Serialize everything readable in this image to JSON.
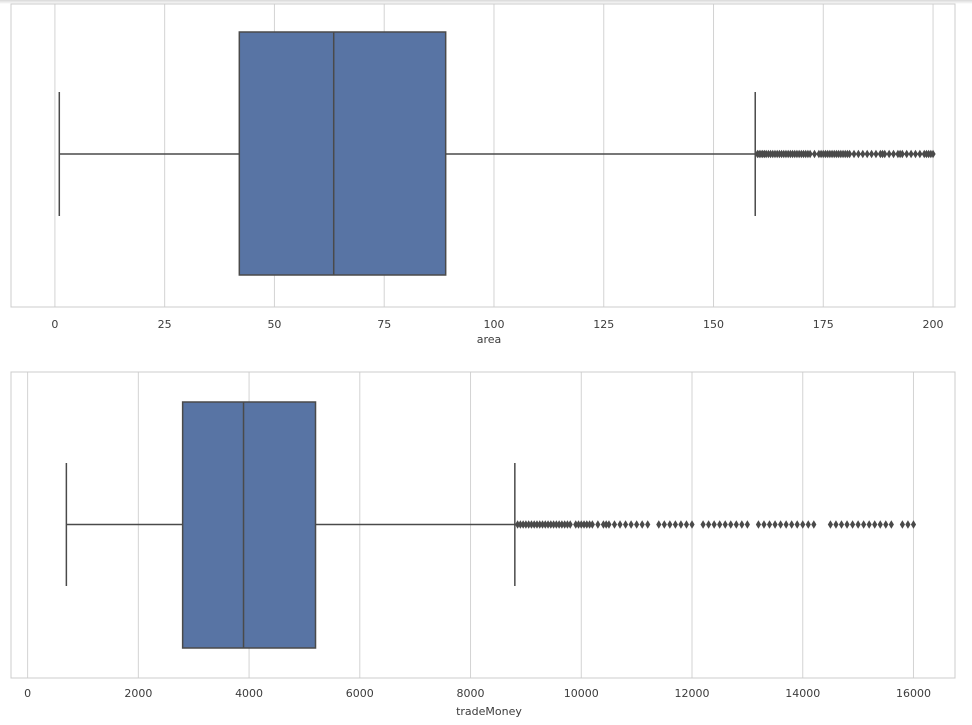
{
  "colors": {
    "box_fill": "#5874a4",
    "line": "#4a4a4a",
    "grid": "#d3d3d3",
    "frame": "#cccccc",
    "text": "#3c3c3c",
    "background": "#ffffff"
  },
  "chart_data": [
    {
      "type": "box",
      "orientation": "horizontal",
      "xlabel": "area",
      "xlim": [
        -10,
        205
      ],
      "xticks": [
        0,
        25,
        50,
        75,
        100,
        125,
        150,
        175,
        200
      ],
      "tick_labels": [
        "0",
        "25",
        "50",
        "75",
        "100",
        "125",
        "150",
        "175",
        "200"
      ],
      "grid": true,
      "box": {
        "whisker_low": 1,
        "q1": 42,
        "median": 63.5,
        "q3": 89,
        "whisker_high": 159.5
      },
      "outliers": [
        160,
        160.4,
        160.8,
        161.2,
        161.6,
        162,
        162.5,
        163,
        163.5,
        164,
        164.5,
        165,
        165.5,
        166,
        166.5,
        167,
        167.5,
        168,
        168.5,
        169,
        169.5,
        170,
        170.5,
        171,
        171.5,
        172,
        173,
        174,
        174.5,
        175,
        175.5,
        176,
        176.5,
        177,
        177.5,
        178,
        178.5,
        179,
        179.5,
        180,
        180.5,
        181,
        182,
        183,
        184,
        185,
        186,
        187,
        188,
        188.5,
        189,
        190,
        191,
        192,
        192.5,
        193,
        194,
        195,
        196,
        197,
        198,
        198.5,
        199,
        199.5,
        200
      ]
    },
    {
      "type": "box",
      "orientation": "horizontal",
      "xlabel": "tradeMoney",
      "xlim": [
        -300,
        16750
      ],
      "xticks": [
        0,
        2000,
        4000,
        6000,
        8000,
        10000,
        12000,
        14000,
        16000
      ],
      "tick_labels": [
        "0",
        "2000",
        "4000",
        "6000",
        "8000",
        "10000",
        "12000",
        "14000",
        "16000"
      ],
      "grid": true,
      "box": {
        "whisker_low": 700,
        "q1": 2800,
        "median": 3900,
        "q3": 5200,
        "whisker_high": 8800
      },
      "outliers": [
        8850,
        8900,
        8950,
        9000,
        9050,
        9100,
        9150,
        9200,
        9250,
        9300,
        9350,
        9400,
        9450,
        9500,
        9550,
        9600,
        9650,
        9700,
        9750,
        9800,
        9900,
        9950,
        10000,
        10050,
        10100,
        10150,
        10200,
        10300,
        10400,
        10450,
        10500,
        10600,
        10700,
        10800,
        10900,
        11000,
        11100,
        11200,
        11400,
        11500,
        11600,
        11700,
        11800,
        11900,
        12000,
        12200,
        12300,
        12400,
        12500,
        12600,
        12700,
        12800,
        12900,
        13000,
        13200,
        13300,
        13400,
        13500,
        13600,
        13700,
        13800,
        13900,
        14000,
        14100,
        14200,
        14500,
        14600,
        14700,
        14800,
        14900,
        15000,
        15100,
        15200,
        15300,
        15400,
        15500,
        15600,
        15800,
        15900,
        16000
      ]
    }
  ]
}
